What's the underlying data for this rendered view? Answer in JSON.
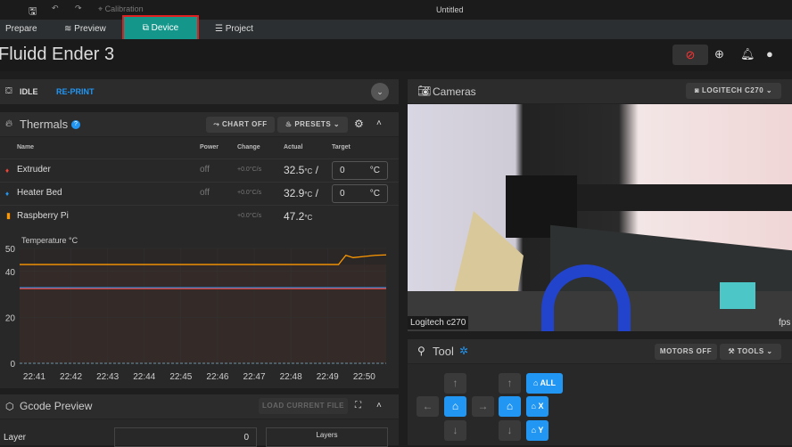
{
  "titlebar": {
    "title": "Untitled",
    "calibration": "Calibration"
  },
  "tabs": [
    {
      "label": "Prepare"
    },
    {
      "label": "Preview"
    },
    {
      "label": "Device",
      "active": true
    },
    {
      "label": "Project"
    }
  ],
  "header": {
    "title": "Fluidd Ender 3"
  },
  "status": {
    "state": "IDLE",
    "reprint": "RE-PRINT"
  },
  "thermals": {
    "title": "Thermals",
    "chart_off": "CHART OFF",
    "presets": "PRESETS",
    "columns": [
      "Name",
      "Power",
      "Change",
      "Actual",
      "Target"
    ],
    "rows": [
      {
        "name": "Extruder",
        "power": "off",
        "change": "+0.0°C/s",
        "actual": "32.5",
        "unit": "°C",
        "target": "0",
        "target_unit": "°C",
        "color": "#f44336"
      },
      {
        "name": "Heater Bed",
        "power": "off",
        "change": "+0.0°C/s",
        "actual": "32.9",
        "unit": "°C",
        "target": "0",
        "target_unit": "°C",
        "color": "#2196f3"
      },
      {
        "name": "Raspberry Pi",
        "power": "",
        "change": "+0.0°C/s",
        "actual": "47.2",
        "unit": "°C",
        "color": "#ff9800"
      }
    ]
  },
  "chart_data": {
    "type": "line",
    "ylabel": "Temperature °C",
    "ylim": [
      0,
      50
    ],
    "yticks": [
      0,
      20,
      40,
      50
    ],
    "xticks": [
      "22:41",
      "22:42",
      "22:43",
      "22:44",
      "22:45",
      "22:46",
      "22:47",
      "22:48",
      "22:49",
      "22:50"
    ],
    "xlim": [
      "22:40.6",
      "22:50.6"
    ],
    "grid": true,
    "series": [
      {
        "key": "raspberry-pi",
        "color": "#ff9800",
        "points": [
          [
            "22:40.6",
            43
          ],
          [
            "22:49.3",
            43
          ],
          [
            "22:49.4",
            45
          ],
          [
            "22:49.5",
            47
          ],
          [
            "22:49.7",
            46
          ],
          [
            "22:50.0",
            46.5
          ],
          [
            "22:50.3",
            47
          ],
          [
            "22:50.6",
            47.2
          ]
        ]
      },
      {
        "key": "heater-bed",
        "color": "#2196f3",
        "points": [
          [
            "22:40.6",
            32.9
          ],
          [
            "22:50.6",
            32.9
          ]
        ]
      },
      {
        "key": "extruder",
        "color": "#f44336",
        "points": [
          [
            "22:40.6",
            32.5
          ],
          [
            "22:50.6",
            32.5
          ]
        ]
      },
      {
        "key": "targets",
        "color": "#607d8b",
        "points": [
          [
            "22:40.6",
            0
          ],
          [
            "22:50.6",
            0
          ]
        ]
      }
    ]
  },
  "gcode": {
    "title": "Gcode Preview",
    "load": "LOAD CURRENT FILE",
    "layer_label": "Layer",
    "layer_value": "0",
    "layers_label": "Layers"
  },
  "cameras": {
    "title": "Cameras",
    "selected": "LOGITECH C270",
    "overlay_name": "Logitech c270",
    "fps": "fps"
  },
  "tool": {
    "title": "Tool",
    "motors_off": "MOTORS OFF",
    "tools": "TOOLS",
    "home_all": "ALL",
    "home_x": "X",
    "home_y": "Y"
  }
}
